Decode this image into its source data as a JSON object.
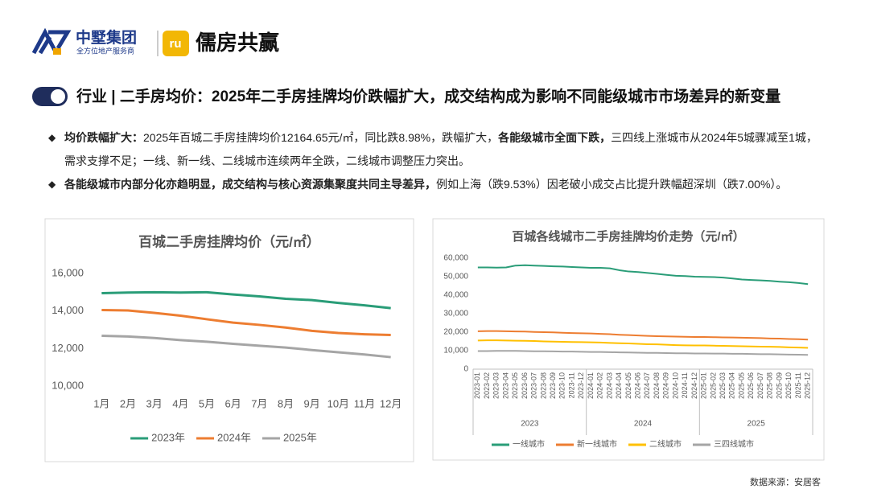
{
  "header": {
    "company": "中墅集团",
    "slogan": "全方位地产服务商",
    "brand": "儒房共赢",
    "title": "行业 | 二手房均价：2025年二手房挂牌均价跌幅扩大，成交结构成为影响不同能级城市市场差异的新变量"
  },
  "bullets": [
    [
      {
        "text": "均价跌幅扩大：",
        "bold": true
      },
      {
        "text": "2025年百城二手房挂牌均价12164.65元/㎡，同比跌8.98%，跌幅扩大，",
        "bold": false
      },
      {
        "text": "各能级城市全面下跌，",
        "bold": true
      },
      {
        "text": "三四线上涨城市从2024年5城骤减至1城，需求支撑不足；一线、新一线、二线城市连续两年全跌，二线城市调整压力突出。",
        "bold": false
      }
    ],
    [
      {
        "text": "各能级城市内部分化亦趋明显，成交结构与核心资源集聚度共同主导差异，",
        "bold": true
      },
      {
        "text": "例如上海（跌9.53%）因老破小成交占比提升跌幅超深圳（跌7.00%）。",
        "bold": false
      }
    ]
  ],
  "chart_data": [
    {
      "type": "line",
      "title": "百城二手房挂牌均价（元/㎡）",
      "categories": [
        "1月",
        "2月",
        "3月",
        "4月",
        "5月",
        "6月",
        "7月",
        "8月",
        "9月",
        "10月",
        "11月",
        "12月"
      ],
      "series": [
        {
          "name": "2023年",
          "color": "#2a9d78",
          "values": [
            14950,
            14980,
            15000,
            14980,
            15000,
            14880,
            14780,
            14650,
            14580,
            14430,
            14300,
            14150
          ]
        },
        {
          "name": "2024年",
          "color": "#ed7d31",
          "values": [
            14050,
            14030,
            13900,
            13750,
            13560,
            13380,
            13260,
            13120,
            12940,
            12830,
            12760,
            12720
          ]
        },
        {
          "name": "2025年",
          "color": "#a5a5a5",
          "values": [
            12680,
            12640,
            12560,
            12450,
            12360,
            12250,
            12150,
            12050,
            11920,
            11800,
            11680,
            11540
          ]
        }
      ],
      "ylim": [
        10000,
        16000
      ],
      "yticks": [
        {
          "value": 10000,
          "label": "10,000"
        },
        {
          "value": 12000,
          "label": "12,000"
        },
        {
          "value": 14000,
          "label": "14,000"
        },
        {
          "value": 16000,
          "label": "16,000"
        }
      ],
      "grid": false,
      "legend": "bottom"
    },
    {
      "type": "line",
      "title": "百城各线城市二手房挂牌均价走势（元/㎡）",
      "categories": [
        "2023-01",
        "2023-02",
        "2023-03",
        "2023-04",
        "2023-05",
        "2023-06",
        "2023-07",
        "2023-08",
        "2023-09",
        "2023-10",
        "2023-11",
        "2023-12",
        "2024-01",
        "2024-02",
        "2024-03",
        "2024-04",
        "2024-05",
        "2024-06",
        "2024-07",
        "2024-08",
        "2024-09",
        "2024-10",
        "2024-11",
        "2024-12",
        "2025-01",
        "2025-02",
        "2025-03",
        "2025-04",
        "2025-05",
        "2025-06",
        "2025-07",
        "2025-08",
        "2025-09",
        "2025-10",
        "2025-11",
        "2025-12"
      ],
      "x_groups": [
        "2023",
        "2024",
        "2025"
      ],
      "series": [
        {
          "name": "一线城市",
          "color": "#2a9d78",
          "values": [
            55000,
            55000,
            54900,
            55000,
            56000,
            56200,
            56000,
            55800,
            55600,
            55500,
            55200,
            55000,
            54800,
            54800,
            54500,
            53500,
            52800,
            52500,
            52000,
            51500,
            51000,
            50500,
            50300,
            50000,
            49900,
            49800,
            49500,
            49000,
            48500,
            48200,
            48000,
            47700,
            47300,
            47000,
            46600,
            46000
          ]
        },
        {
          "name": "新一线城市",
          "color": "#ed7d31",
          "values": [
            20500,
            20600,
            20600,
            20500,
            20400,
            20300,
            20100,
            20000,
            19900,
            19700,
            19500,
            19400,
            19300,
            19100,
            18900,
            18600,
            18400,
            18200,
            18000,
            17800,
            17700,
            17600,
            17500,
            17400,
            17400,
            17300,
            17200,
            17100,
            17000,
            16900,
            16800,
            16600,
            16500,
            16300,
            16200,
            16000
          ]
        },
        {
          "name": "二线城市",
          "color": "#ffc000",
          "values": [
            15500,
            15600,
            15600,
            15500,
            15400,
            15300,
            15200,
            15000,
            14900,
            14800,
            14700,
            14600,
            14500,
            14400,
            14200,
            14000,
            13900,
            13700,
            13500,
            13400,
            13200,
            13000,
            12900,
            12800,
            12800,
            12700,
            12600,
            12500,
            12400,
            12300,
            12200,
            12100,
            12000,
            11800,
            11700,
            11500
          ]
        },
        {
          "name": "三四线城市",
          "color": "#a5a5a5",
          "values": [
            9800,
            9800,
            9900,
            9900,
            9900,
            9800,
            9700,
            9700,
            9600,
            9500,
            9500,
            9400,
            9300,
            9300,
            9200,
            9100,
            9000,
            8900,
            8800,
            8800,
            8700,
            8600,
            8600,
            8500,
            8500,
            8400,
            8400,
            8300,
            8300,
            8200,
            8100,
            8100,
            8000,
            7900,
            7800,
            7700
          ]
        }
      ],
      "ylim": [
        0,
        60000
      ],
      "yticks": [
        0,
        {
          "value": 10000,
          "label": "10,000"
        },
        {
          "value": 20000,
          "label": "20,000"
        },
        {
          "value": 30000,
          "label": "30,000"
        },
        {
          "value": 40000,
          "label": "40,000"
        },
        {
          "value": 50000,
          "label": "50,000"
        },
        {
          "value": 60000,
          "label": "60,000"
        }
      ],
      "grid": false,
      "legend": "bottom"
    }
  ],
  "source": "数据来源：安居客"
}
